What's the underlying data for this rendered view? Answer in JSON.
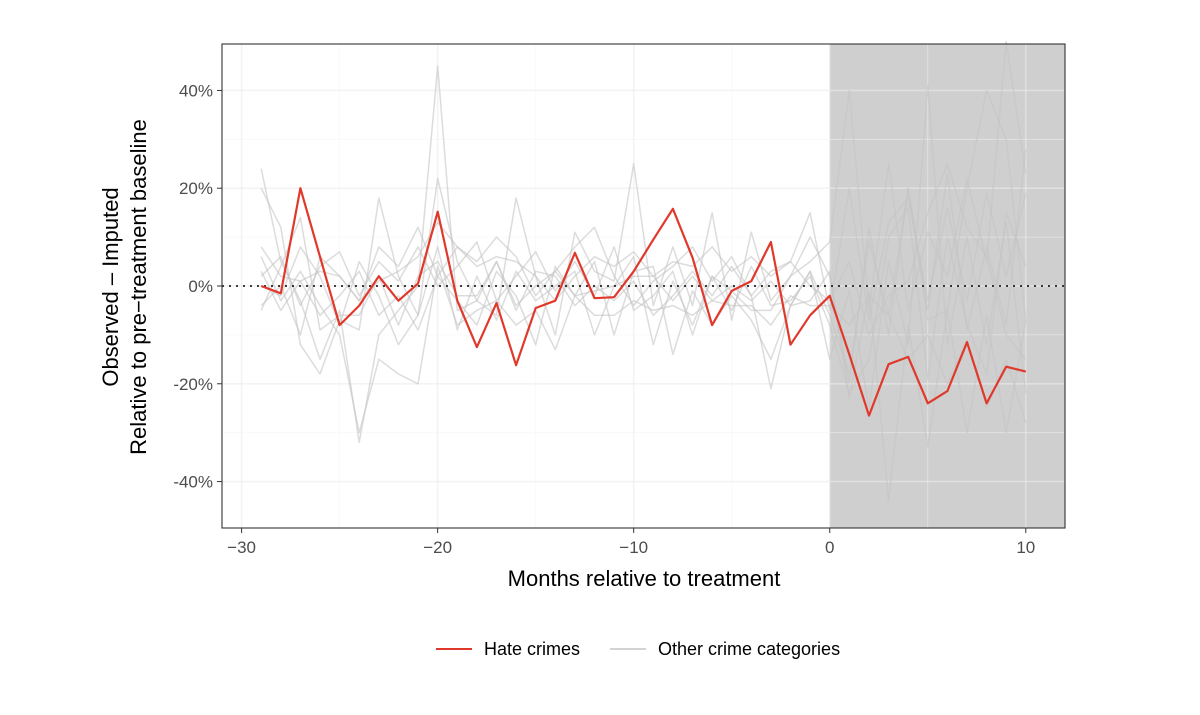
{
  "chart_data": {
    "type": "line",
    "xlabel": "Months relative to treatment",
    "ylabel_line1": "Observed – Imputed",
    "ylabel_line2": "Relative to pre−treatment baseline",
    "xlim": [
      -31,
      12
    ],
    "ylim": [
      -49.5,
      49.5
    ],
    "x_ticks": [
      -30,
      -20,
      -10,
      0,
      10
    ],
    "x_tick_labels": [
      "−30",
      "−20",
      "−10",
      "0",
      "10"
    ],
    "y_ticks": [
      -40,
      -20,
      0,
      20,
      40
    ],
    "y_tick_labels": [
      "-40%",
      "-20%",
      "0%",
      "20%",
      "40%"
    ],
    "grid": true,
    "reference_line_y": 0,
    "post_treatment_shading_from_x": 0,
    "legend_position": "bottom",
    "colors": {
      "hate": "#e0392b",
      "other": "#d3d3d3",
      "shade": "#cfcfcf",
      "panel_border": "#333333",
      "grid_major": "#ebebeb"
    },
    "x": [
      -29,
      -28,
      -27,
      -26,
      -25,
      -24,
      -23,
      -22,
      -21,
      -20,
      -19,
      -18,
      -17,
      -16,
      -15,
      -14,
      -13,
      -12,
      -11,
      -10,
      -9,
      -8,
      -7,
      -6,
      -5,
      -4,
      -3,
      -2,
      -1,
      0,
      1,
      2,
      3,
      4,
      5,
      6,
      7,
      8,
      9,
      10
    ],
    "series": [
      {
        "name": "Hate crimes",
        "values": [
          0,
          -1.5,
          20,
          6,
          -8,
          -4,
          2,
          -3,
          0.5,
          15.2,
          -3,
          -12.5,
          -3.5,
          -16.2,
          -4.5,
          -3,
          6.8,
          -2.5,
          -2.3,
          3,
          9.5,
          15.8,
          5.8,
          -8,
          -1,
          1,
          9,
          -12,
          -6,
          -2,
          -14,
          -26.5,
          -16,
          -14.5,
          -24,
          -21.5,
          -11.5,
          -24,
          -16.5,
          -17.5
        ]
      },
      {
        "name": "Other crime categories",
        "values": [
          24,
          5,
          -3,
          -15,
          -5,
          -32,
          -10,
          -5,
          0,
          45,
          -5,
          -3,
          5,
          -5,
          3,
          2,
          -4,
          0,
          -3,
          1,
          -6,
          -2,
          3,
          -2,
          4,
          -2,
          -21,
          -4,
          -3,
          3,
          -23,
          -1,
          -44,
          -8,
          -33,
          -5,
          -30,
          -6,
          -30,
          -7
        ]
      },
      {
        "values": [
          20,
          12,
          -12,
          -18,
          -7,
          -9,
          18,
          2,
          -6,
          22,
          5,
          -3,
          -6,
          18,
          2,
          -10,
          11,
          3,
          1,
          25,
          -4,
          8,
          -4,
          15,
          -7,
          11,
          -3,
          2,
          5,
          9,
          40,
          -5,
          25,
          -5,
          11,
          2,
          22,
          5,
          50,
          23
        ]
      },
      {
        "values": [
          -5,
          4,
          14,
          -9,
          -6,
          -6,
          2,
          -8,
          2,
          5,
          -2,
          -2,
          5,
          -4,
          0,
          3,
          -2,
          -1,
          0,
          2,
          2,
          -3,
          2,
          -3,
          0,
          -3,
          1,
          -4,
          3,
          -6,
          -18,
          9,
          -6,
          20,
          -5,
          23,
          -9,
          8,
          -8,
          28
        ]
      },
      {
        "values": [
          6,
          -3,
          3,
          -4,
          -10,
          -30,
          -15,
          -18,
          -20,
          4,
          -8,
          -5,
          -3,
          -8,
          -5,
          -13,
          -2,
          -6,
          -6,
          -3,
          -5,
          -4,
          -6,
          -3,
          -4,
          -4,
          -8,
          -2,
          -4,
          -4,
          -8,
          -2,
          -6,
          -15,
          -10,
          -20,
          -11,
          -25,
          -15,
          -28
        ]
      },
      {
        "values": [
          8,
          2,
          1,
          3,
          2,
          -3,
          1,
          3,
          6,
          13,
          8,
          4,
          6,
          5,
          2,
          -3,
          2,
          6,
          4,
          7,
          2,
          5,
          4,
          8,
          3,
          6,
          2,
          5,
          15,
          -5,
          20,
          -7,
          13,
          18,
          -3,
          16,
          -3,
          19,
          2,
          19
        ]
      },
      {
        "values": [
          2,
          6,
          -4,
          4,
          7,
          -2,
          5,
          1,
          8,
          0,
          4,
          9,
          -3,
          2,
          7,
          -1,
          5,
          -2,
          8,
          -5,
          -2,
          3,
          -10,
          2,
          -5,
          4,
          -4,
          -3,
          2,
          -8,
          -22,
          -15,
          10,
          16,
          -19,
          10,
          -8,
          -18,
          15,
          4
        ]
      },
      {
        "values": [
          3,
          -5,
          1,
          -6,
          -2,
          3,
          -6,
          -2,
          -9,
          2,
          -3,
          -8,
          3,
          -2,
          -12,
          4,
          -2,
          5,
          -10,
          3,
          4,
          -14,
          -1,
          -8,
          -2,
          -7,
          -15,
          -4,
          3,
          -15,
          -1,
          -25,
          5,
          -12,
          41,
          -12,
          10,
          -12,
          13,
          -22
        ]
      },
      {
        "values": [
          0,
          -2,
          8,
          2,
          -8,
          5,
          -2,
          -12,
          -6,
          8,
          -9,
          2,
          -7,
          3,
          -3,
          0,
          3,
          -10,
          0,
          6,
          -12,
          1,
          -8,
          2,
          -1,
          -5,
          -5,
          2,
          10,
          2,
          -20,
          12,
          -10,
          20,
          -7,
          -5,
          20,
          40,
          30,
          -7
        ]
      },
      {
        "values": [
          -4,
          0,
          -10,
          6,
          2,
          -3,
          8,
          4,
          12,
          2,
          8,
          5,
          10,
          6,
          -2,
          3,
          8,
          12,
          2,
          -4,
          1,
          4,
          8,
          1,
          6,
          -2,
          3,
          5,
          0,
          -3,
          5,
          -10,
          -2,
          1,
          15,
          25,
          12,
          6,
          -10,
          -15
        ]
      }
    ],
    "legend_entries": [
      "Hate crimes",
      "Other crime categories"
    ]
  }
}
